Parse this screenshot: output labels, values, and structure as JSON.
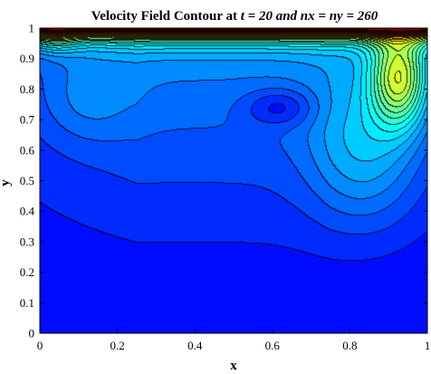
{
  "chart_data": {
    "type": "heatmap",
    "subtype": "filled-contour",
    "title_prefix": "Velocity Field Contour at ",
    "title_t_var": "t",
    "title_t_value": " = 20 ",
    "title_rest": "and nx = ny = 260",
    "xlabel": "x",
    "ylabel": "y",
    "xlim": [
      0,
      1
    ],
    "ylim": [
      0,
      1
    ],
    "xticks": [
      0,
      0.2,
      0.4,
      0.6,
      0.8,
      1
    ],
    "xtick_labels": [
      "0",
      "0.2",
      "0.4",
      "0.6",
      "0.8",
      "1"
    ],
    "yticks": [
      0,
      0.1,
      0.2,
      0.3,
      0.4,
      0.5,
      0.6,
      0.7,
      0.8,
      0.9,
      1
    ],
    "ytick_labels": [
      "0",
      "0.1",
      "0.2",
      "0.3",
      "0.4",
      "0.5",
      "0.6",
      "0.7",
      "0.8",
      "0.9",
      "1"
    ],
    "colormap": "jet",
    "grid": false,
    "legend": "none",
    "features": {
      "lid_velocity_max_near": [
        0.5,
        1.0
      ],
      "primary_vortex_center": [
        0.62,
        0.74
      ],
      "high_speed_lobe_center": [
        0.93,
        0.84
      ],
      "secondary_region_center": [
        0.13,
        0.76
      ]
    }
  }
}
